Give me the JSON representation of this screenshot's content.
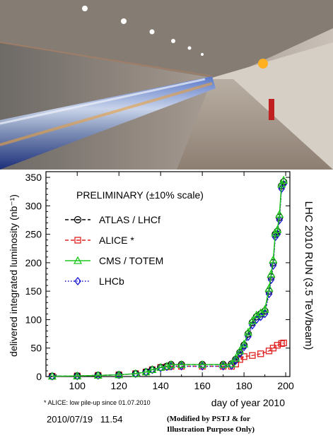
{
  "photo": {
    "description_icon": "lhc-tunnel-photo"
  },
  "chart_data": {
    "type": "line",
    "title": "PRELIMINARY (±10% scale)",
    "side_title": "LHC 2010 RUN (3.5 TeV/beam)",
    "xlabel": "day of year 2010",
    "ylabel": "delivered integrated luminosity (nb⁻¹)",
    "xlim": [
      85,
      202
    ],
    "ylim": [
      0,
      360
    ],
    "xticks": [
      100,
      120,
      140,
      160,
      180,
      200
    ],
    "yticks": [
      0,
      50,
      100,
      150,
      200,
      250,
      300,
      350
    ],
    "grid": false,
    "legend_position": "top-left",
    "series": [
      {
        "name": "ATLAS / LHCf",
        "color": "#000000",
        "marker": "circle-dot",
        "linestyle": "dashed",
        "x": [
          88,
          100,
          110,
          120,
          128,
          133,
          136,
          140,
          143,
          145,
          150,
          160,
          170,
          174,
          176,
          178,
          180,
          182,
          184,
          186,
          188,
          190,
          192,
          193,
          194,
          195,
          196,
          197,
          198,
          199
        ],
        "y": [
          0.5,
          1,
          2,
          3,
          5,
          8,
          12,
          16,
          18,
          21,
          21,
          21,
          21,
          22,
          30,
          42,
          55,
          75,
          95,
          105,
          110,
          115,
          150,
          175,
          200,
          250,
          255,
          280,
          335,
          342
        ]
      },
      {
        "name": "ALICE *",
        "color": "#e02020",
        "marker": "square",
        "linestyle": "dashed",
        "x": [
          88,
          100,
          110,
          120,
          128,
          133,
          136,
          140,
          143,
          145,
          150,
          160,
          170,
          174,
          176,
          178,
          180,
          184,
          188,
          192,
          194,
          196,
          198,
          199
        ],
        "y": [
          0.5,
          1,
          2,
          3,
          5,
          8,
          12,
          16,
          17,
          18,
          18,
          18,
          18,
          18,
          22,
          30,
          35,
          37,
          40,
          45,
          50,
          55,
          58,
          59
        ]
      },
      {
        "name": "CMS / TOTEM",
        "color": "#1ec81e",
        "marker": "triangle",
        "linestyle": "solid",
        "x": [
          88,
          100,
          110,
          120,
          128,
          133,
          136,
          140,
          143,
          145,
          150,
          160,
          170,
          174,
          176,
          178,
          180,
          182,
          184,
          186,
          188,
          190,
          192,
          193,
          194,
          195,
          196,
          197,
          198,
          199
        ],
        "y": [
          0.5,
          1,
          2,
          3,
          5,
          8,
          12,
          16,
          18,
          21,
          21,
          21,
          21,
          22,
          32,
          45,
          57,
          78,
          98,
          108,
          112,
          118,
          155,
          180,
          205,
          252,
          258,
          285,
          338,
          345
        ]
      },
      {
        "name": "LHCb",
        "color": "#1010d0",
        "marker": "diamond",
        "linestyle": "dotted",
        "x": [
          88,
          100,
          110,
          120,
          128,
          133,
          136,
          140,
          143,
          145,
          150,
          160,
          170,
          174,
          176,
          178,
          180,
          182,
          184,
          186,
          188,
          190,
          192,
          193,
          194,
          195,
          196,
          197,
          198,
          199
        ],
        "y": [
          0.5,
          1,
          2,
          3,
          5,
          8,
          12,
          15,
          17,
          18,
          18,
          18,
          18,
          19,
          28,
          40,
          52,
          70,
          90,
          100,
          105,
          110,
          145,
          170,
          195,
          245,
          250,
          275,
          330,
          338
        ]
      }
    ],
    "annotations": {
      "footnote": "* ALICE: low pile-up since 01.07.2010",
      "timestamp": "2010/07/19   11.54",
      "modified_note_line1": "(Modified by PSTJ & for",
      "modified_note_line2": "Illustration Purpose Only)"
    }
  }
}
